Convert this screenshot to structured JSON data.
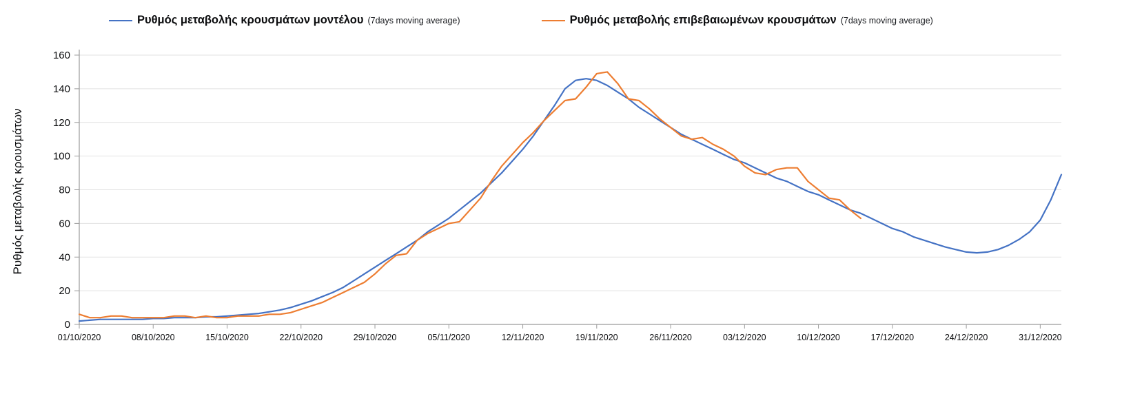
{
  "legend": {
    "entries": [
      {
        "label": "Ρυθμός μεταβολής κρουσμάτων μοντέλου",
        "sublabel": "(7days moving average)",
        "color": "#4472c4"
      },
      {
        "label": "Ρυθμός μεταβολής επιβεβαιωμένων κρουσμάτων",
        "sublabel": "(7days moving average)",
        "color": "#ed7d31"
      }
    ]
  },
  "y_axis": {
    "title": "Ρυθμός μεταβολής κρουσμάτων"
  },
  "chart_data": {
    "type": "line",
    "title": "",
    "xlabel": "",
    "ylabel": "Ρυθμός μεταβολής κρουσμάτων",
    "ylim": [
      0,
      160
    ],
    "ytick_step": 20,
    "grid": "horizontal",
    "legend_position": "top",
    "grid_color": "#e2e2e2",
    "axis_color": "#9b9b9b",
    "x_tick_every_days": 7,
    "x_tick_labels": [
      "01/10/2020",
      "08/10/2020",
      "15/10/2020",
      "22/10/2020",
      "29/10/2020",
      "05/11/2020",
      "12/11/2020",
      "19/11/2020",
      "26/11/2020",
      "03/12/2020",
      "10/12/2020",
      "17/12/2020",
      "24/12/2020",
      "31/12/2020"
    ],
    "x": [
      "01/10/2020",
      "02/10/2020",
      "03/10/2020",
      "04/10/2020",
      "05/10/2020",
      "06/10/2020",
      "07/10/2020",
      "08/10/2020",
      "09/10/2020",
      "10/10/2020",
      "11/10/2020",
      "12/10/2020",
      "13/10/2020",
      "14/10/2020",
      "15/10/2020",
      "16/10/2020",
      "17/10/2020",
      "18/10/2020",
      "19/10/2020",
      "20/10/2020",
      "21/10/2020",
      "22/10/2020",
      "23/10/2020",
      "24/10/2020",
      "25/10/2020",
      "26/10/2020",
      "27/10/2020",
      "28/10/2020",
      "29/10/2020",
      "30/10/2020",
      "31/10/2020",
      "01/11/2020",
      "02/11/2020",
      "03/11/2020",
      "04/11/2020",
      "05/11/2020",
      "06/11/2020",
      "07/11/2020",
      "08/11/2020",
      "09/11/2020",
      "10/11/2020",
      "11/11/2020",
      "12/11/2020",
      "13/11/2020",
      "14/11/2020",
      "15/11/2020",
      "16/11/2020",
      "17/11/2020",
      "18/11/2020",
      "19/11/2020",
      "20/11/2020",
      "21/11/2020",
      "22/11/2020",
      "23/11/2020",
      "24/11/2020",
      "25/11/2020",
      "26/11/2020",
      "27/11/2020",
      "28/11/2020",
      "29/11/2020",
      "30/11/2020",
      "01/12/2020",
      "02/12/2020",
      "03/12/2020",
      "04/12/2020",
      "05/12/2020",
      "06/12/2020",
      "07/12/2020",
      "08/12/2020",
      "09/12/2020",
      "10/12/2020",
      "11/12/2020",
      "12/12/2020",
      "13/12/2020",
      "14/12/2020",
      "15/12/2020",
      "16/12/2020",
      "17/12/2020",
      "18/12/2020",
      "19/12/2020",
      "20/12/2020",
      "21/12/2020",
      "22/12/2020",
      "23/12/2020",
      "24/12/2020",
      "25/12/2020",
      "26/12/2020",
      "27/12/2020",
      "28/12/2020",
      "29/12/2020",
      "30/12/2020",
      "31/12/2020",
      "01/01/2021",
      "02/01/2021"
    ],
    "series": [
      {
        "key": "model",
        "name": "Ρυθμός μεταβολής κρουσμάτων μοντέλου (7days moving average)",
        "color": "#4472c4",
        "values": [
          2,
          2.5,
          3,
          3,
          3,
          3,
          3,
          3.5,
          3.5,
          4,
          4,
          4,
          4.5,
          4.5,
          5,
          5.5,
          6,
          6.5,
          7.5,
          8.5,
          10,
          12,
          14,
          16.5,
          19,
          22,
          26,
          30,
          34,
          38,
          42,
          46,
          50,
          55,
          59,
          63,
          68,
          73,
          78,
          84,
          90,
          97,
          104,
          112,
          121,
          130,
          140,
          145,
          146,
          145,
          142,
          138,
          134,
          129,
          125,
          121,
          117,
          113,
          110,
          107,
          104,
          101,
          98,
          96,
          93,
          90,
          87,
          85,
          82,
          79,
          77,
          74,
          71,
          68,
          66,
          63,
          60,
          57,
          55,
          52,
          50,
          48,
          46,
          44.5,
          43,
          42.5,
          43,
          44.5,
          47,
          50.5,
          55,
          62,
          74,
          89
        ]
      },
      {
        "key": "confirmed",
        "name": "Ρυθμός μεταβολής επιβεβαιωμένων κρουσμάτων (7days moving average)",
        "color": "#ed7d31",
        "values": [
          6,
          4,
          4,
          5,
          5,
          4,
          4,
          4,
          4,
          5,
          5,
          4,
          5,
          4,
          4,
          5,
          5,
          5,
          6,
          6,
          7,
          9,
          11,
          13,
          16,
          19,
          22,
          25,
          30,
          36,
          41,
          42,
          50,
          54,
          57,
          60,
          61,
          68,
          75,
          85,
          94,
          101,
          108,
          114,
          121,
          127,
          133,
          134,
          141,
          149,
          150,
          143,
          134,
          133,
          128,
          122,
          117,
          112,
          110,
          111,
          107,
          104,
          100,
          94,
          90,
          89,
          92,
          93,
          93,
          85,
          80,
          75,
          74,
          68,
          63,
          null,
          null,
          null,
          null,
          null,
          null,
          null,
          null,
          null,
          null,
          null,
          null,
          null,
          null,
          null,
          null,
          null,
          null,
          null
        ]
      }
    ]
  }
}
